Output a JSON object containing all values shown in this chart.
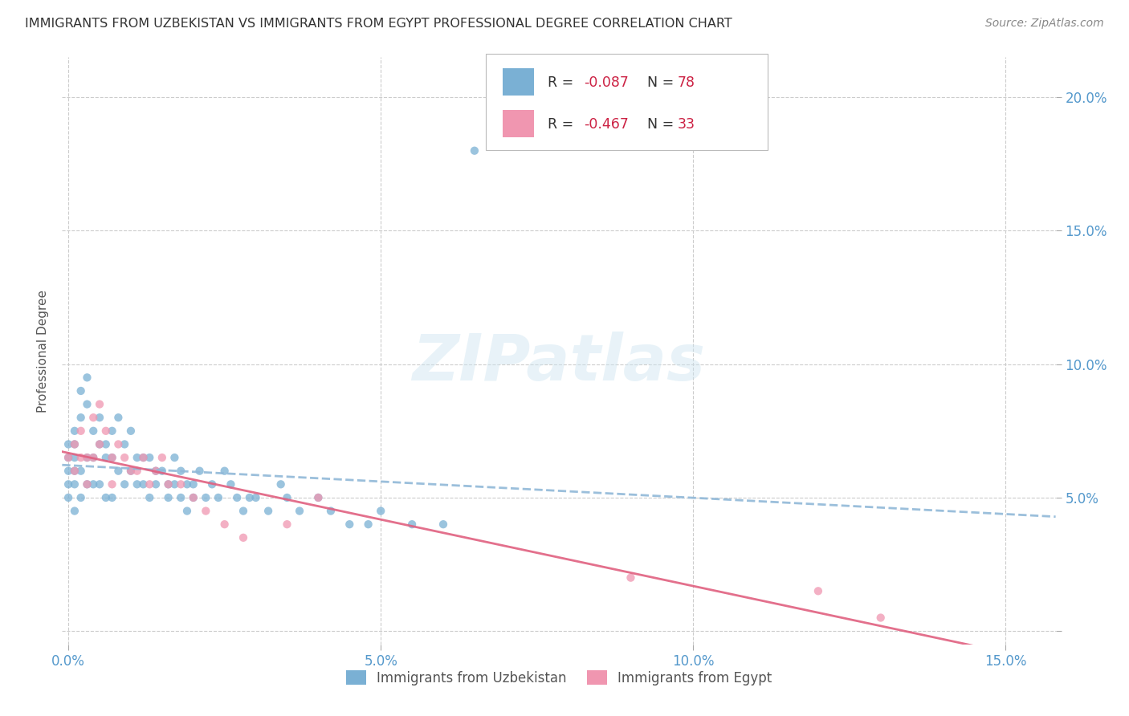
{
  "title": "IMMIGRANTS FROM UZBEKISTAN VS IMMIGRANTS FROM EGYPT PROFESSIONAL DEGREE CORRELATION CHART",
  "source": "Source: ZipAtlas.com",
  "ylabel": "Professional Degree",
  "legend_label1": "Immigrants from Uzbekistan",
  "legend_label2": "Immigrants from Egypt",
  "color_uzbekistan": "#7ab0d4",
  "color_egypt": "#f096b0",
  "trendline_uzbekistan_color": "#90b8d8",
  "trendline_egypt_color": "#e06080",
  "background_color": "#ffffff",
  "xlim": [
    -0.001,
    0.158
  ],
  "ylim": [
    -0.005,
    0.215
  ],
  "xticks": [
    0.0,
    0.05,
    0.1,
    0.15
  ],
  "yticks": [
    0.0,
    0.05,
    0.1,
    0.15,
    0.2
  ],
  "x_tick_labels": [
    "0.0%",
    "5.0%",
    "10.0%",
    "15.0%"
  ],
  "y_tick_labels_right": [
    "",
    "5.0%",
    "10.0%",
    "15.0%",
    "20.0%"
  ],
  "R_uzbekistan": -0.087,
  "N_uzbekistan": 78,
  "R_egypt": -0.467,
  "N_egypt": 33,
  "uzbekistan_x": [
    0.0,
    0.0,
    0.0,
    0.0,
    0.0,
    0.001,
    0.001,
    0.001,
    0.001,
    0.001,
    0.001,
    0.002,
    0.002,
    0.002,
    0.002,
    0.003,
    0.003,
    0.003,
    0.003,
    0.004,
    0.004,
    0.004,
    0.005,
    0.005,
    0.005,
    0.006,
    0.006,
    0.006,
    0.007,
    0.007,
    0.007,
    0.008,
    0.008,
    0.009,
    0.009,
    0.01,
    0.01,
    0.011,
    0.011,
    0.012,
    0.012,
    0.013,
    0.013,
    0.014,
    0.014,
    0.015,
    0.016,
    0.016,
    0.017,
    0.017,
    0.018,
    0.018,
    0.019,
    0.019,
    0.02,
    0.02,
    0.021,
    0.022,
    0.023,
    0.024,
    0.025,
    0.026,
    0.027,
    0.028,
    0.029,
    0.03,
    0.032,
    0.034,
    0.035,
    0.037,
    0.04,
    0.042,
    0.045,
    0.048,
    0.05,
    0.055,
    0.06,
    0.065
  ],
  "uzbekistan_y": [
    0.06,
    0.065,
    0.07,
    0.055,
    0.05,
    0.065,
    0.07,
    0.06,
    0.075,
    0.055,
    0.045,
    0.08,
    0.09,
    0.06,
    0.05,
    0.095,
    0.085,
    0.065,
    0.055,
    0.075,
    0.065,
    0.055,
    0.08,
    0.07,
    0.055,
    0.07,
    0.065,
    0.05,
    0.075,
    0.065,
    0.05,
    0.08,
    0.06,
    0.07,
    0.055,
    0.075,
    0.06,
    0.065,
    0.055,
    0.065,
    0.055,
    0.065,
    0.05,
    0.06,
    0.055,
    0.06,
    0.055,
    0.05,
    0.065,
    0.055,
    0.06,
    0.05,
    0.055,
    0.045,
    0.055,
    0.05,
    0.06,
    0.05,
    0.055,
    0.05,
    0.06,
    0.055,
    0.05,
    0.045,
    0.05,
    0.05,
    0.045,
    0.055,
    0.05,
    0.045,
    0.05,
    0.045,
    0.04,
    0.04,
    0.045,
    0.04,
    0.04,
    0.18
  ],
  "egypt_x": [
    0.0,
    0.001,
    0.001,
    0.002,
    0.002,
    0.003,
    0.003,
    0.004,
    0.004,
    0.005,
    0.005,
    0.006,
    0.007,
    0.007,
    0.008,
    0.009,
    0.01,
    0.011,
    0.012,
    0.013,
    0.014,
    0.015,
    0.016,
    0.018,
    0.02,
    0.022,
    0.025,
    0.028,
    0.035,
    0.04,
    0.09,
    0.12,
    0.13
  ],
  "egypt_y": [
    0.065,
    0.07,
    0.06,
    0.075,
    0.065,
    0.065,
    0.055,
    0.08,
    0.065,
    0.085,
    0.07,
    0.075,
    0.065,
    0.055,
    0.07,
    0.065,
    0.06,
    0.06,
    0.065,
    0.055,
    0.06,
    0.065,
    0.055,
    0.055,
    0.05,
    0.045,
    0.04,
    0.035,
    0.04,
    0.05,
    0.02,
    0.015,
    0.005
  ]
}
